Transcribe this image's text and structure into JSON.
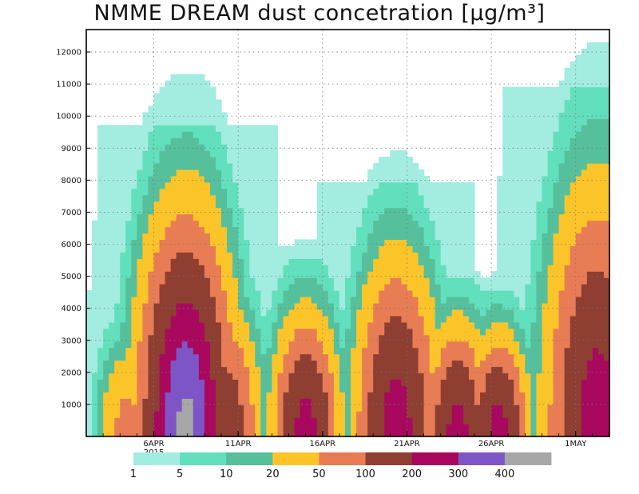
{
  "chart_data": {
    "type": "heatmap",
    "title": "NMME DREAM dust concetration [µg/m³]",
    "xlabel": "",
    "ylabel": "",
    "x_range_days": [
      2,
      33
    ],
    "ylim": [
      0,
      12700
    ],
    "yticks": [
      1000,
      2000,
      3000,
      4000,
      5000,
      6000,
      7000,
      8000,
      9000,
      10000,
      11000,
      12000
    ],
    "xticks": [
      {
        "day": 6,
        "label": "6APR",
        "sublabel": "2015"
      },
      {
        "day": 11,
        "label": "11APR",
        "sublabel": ""
      },
      {
        "day": 16,
        "label": "16APR",
        "sublabel": ""
      },
      {
        "day": 21,
        "label": "21APR",
        "sublabel": ""
      },
      {
        "day": 26,
        "label": "26APR",
        "sublabel": ""
      },
      {
        "day": 31,
        "label": "1MAY",
        "sublabel": ""
      }
    ],
    "grid": true,
    "levels": [
      1,
      5,
      10,
      20,
      50,
      100,
      200,
      300,
      400
    ],
    "colors": [
      "#a3ece0",
      "#62dfbc",
      "#56bf9c",
      "#fbc52a",
      "#e87c55",
      "#8f3e32",
      "#a8095e",
      "#7e55c6",
      "#a7a7a7"
    ],
    "dust_events": [
      {
        "center_day": 4.4,
        "base_m": 200,
        "top_m": 4500,
        "peak_ug_m3": 60
      },
      {
        "center_day": 7.9,
        "base_m": 200,
        "top_m": 9800,
        "peak_ug_m3": 420
      },
      {
        "center_day": 10.3,
        "base_m": 200,
        "top_m": 6000,
        "peak_ug_m3": 150
      },
      {
        "center_day": 15.0,
        "base_m": 200,
        "top_m": 5600,
        "peak_ug_m3": 230
      },
      {
        "center_day": 20.4,
        "base_m": 200,
        "top_m": 8000,
        "peak_ug_m3": 240
      },
      {
        "center_day": 24.0,
        "base_m": 200,
        "top_m": 5000,
        "peak_ug_m3": 230
      },
      {
        "center_day": 26.4,
        "base_m": 200,
        "top_m": 4600,
        "peak_ug_m3": 230
      },
      {
        "center_day": 32.3,
        "base_m": 200,
        "top_m": 11000,
        "peak_ug_m3": 250
      }
    ]
  }
}
